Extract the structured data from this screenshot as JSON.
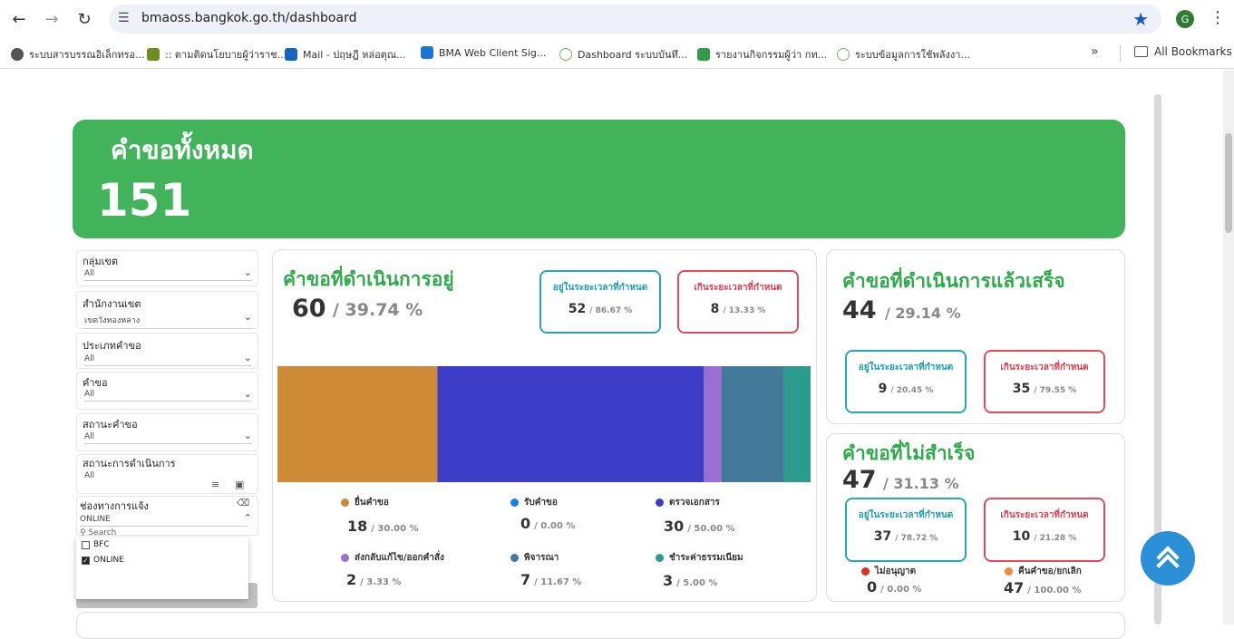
{
  "browser": {
    "url": "bmaoss.bangkok.go.th/dashboard",
    "avatar_letter": "G",
    "bookmarks": [
      {
        "label": "ระบบสารบรรณอิเล็กทรอ...",
        "color": "#555"
      },
      {
        "label": ":: ตามติดนโยบายผู้ว่าราช...",
        "color": "#6a8f1f"
      },
      {
        "label": "Mail - ปฤษฎี หล่อตุณ...",
        "color": "#1565c0"
      },
      {
        "label": "BMA Web Client Sig...",
        "color": "#1976d2"
      },
      {
        "label": "Dashboard ระบบบันทึ...",
        "color": "#8aa56b"
      },
      {
        "label": "รายงานกิจกรรมผู้ว่า กท...",
        "color": "#2e9d46"
      },
      {
        "label": "ระบบข้อมูลการใช้พลังงา...",
        "color": "#8aa56b"
      }
    ],
    "all_bookmarks": "All Bookmarks"
  },
  "hero": {
    "label": "คำขอทั้งหมด",
    "count": "151"
  },
  "filters": [
    {
      "label": "กลุ่มเขต",
      "value": "All"
    },
    {
      "label": "สำนักงานเขต",
      "value": "เขตวังทองหลาง"
    },
    {
      "label": "ประเภทคำขอ",
      "value": "All"
    },
    {
      "label": "คำขอ",
      "value": "All"
    },
    {
      "label": "สถานะคำขอ",
      "value": "All"
    },
    {
      "label": "สถานะการดำเนินการ",
      "value": "All"
    },
    {
      "label": "ช่องทางการแจ้ง",
      "value": "ONLINE"
    }
  ],
  "channel_dropdown": {
    "search_placeholder": "Search",
    "options": [
      {
        "label": "BFC",
        "checked": false
      },
      {
        "label": "ONLINE",
        "checked": true
      }
    ]
  },
  "in_progress": {
    "title": "คำขอที่ดำเนินการอยู่",
    "count": "60",
    "pct": "/ 39.74 %",
    "ontime": {
      "label": "อยู่ในระยะเวลาที่กำหนด",
      "value": "52",
      "pct": "/ 86.67 %"
    },
    "overdue": {
      "label": "เกินระยะเวลาที่กำหนด",
      "value": "8",
      "pct": "/ 13.33 %"
    }
  },
  "chart_data": {
    "type": "bar",
    "stacked": true,
    "series": [
      {
        "name": "ยื่นคำขอ",
        "value": 18,
        "pct": "/ 30.00 %",
        "color": "#cd8b38"
      },
      {
        "name": "รับคำขอ",
        "value": 0,
        "pct": "/ 0.00 %",
        "color": "#1a7fe0"
      },
      {
        "name": "ตรวจเอกสาร",
        "value": 30,
        "pct": "/ 50.00 %",
        "color": "#3d3dc8"
      },
      {
        "name": "ส่งกลับแก้ไข/ออกคำสั่ง",
        "value": 2,
        "pct": "/ 3.33 %",
        "color": "#9a6fd2"
      },
      {
        "name": "พิจารณา",
        "value": 7,
        "pct": "/ 11.67 %",
        "color": "#437a9a"
      },
      {
        "name": "ชำระค่าธรรมเนียม",
        "value": 3,
        "pct": "/ 5.00 %",
        "color": "#2b9c8c"
      }
    ]
  },
  "completed": {
    "title": "คำขอที่ดำเนินการแล้วเสร็จ",
    "count": "44",
    "pct": "/ 29.14 %",
    "ontime": {
      "label": "อยู่ในระยะเวลาที่กำหนด",
      "value": "9",
      "pct": "/ 20.45 %"
    },
    "overdue": {
      "label": "เกินระยะเวลาที่กำหนด",
      "value": "35",
      "pct": "/ 79.55 %"
    }
  },
  "failed": {
    "title": "คำขอที่ไม่สำเร็จ",
    "count": "47",
    "pct": "/ 31.13 %",
    "ontime": {
      "label": "อยู่ในระยะเวลาที่กำหนด",
      "value": "37",
      "pct": "/ 78.72 %"
    },
    "overdue": {
      "label": "เกินระยะเวลาที่กำหนด",
      "value": "10",
      "pct": "/ 21.28 %"
    },
    "denied": {
      "label": "ไม่อนุญาต",
      "value": "0",
      "pct": "/ 0.00 %",
      "color": "#d93025"
    },
    "cancelled": {
      "label": "คืนคำขอ/ยกเลิก",
      "value": "47",
      "pct": "/ 100.00 %",
      "color": "#f08a3c"
    }
  },
  "colors": {
    "green": "#41b35a",
    "teal": "#26a6b6",
    "red": "#e8495a",
    "fab": "#2a8fd6"
  }
}
